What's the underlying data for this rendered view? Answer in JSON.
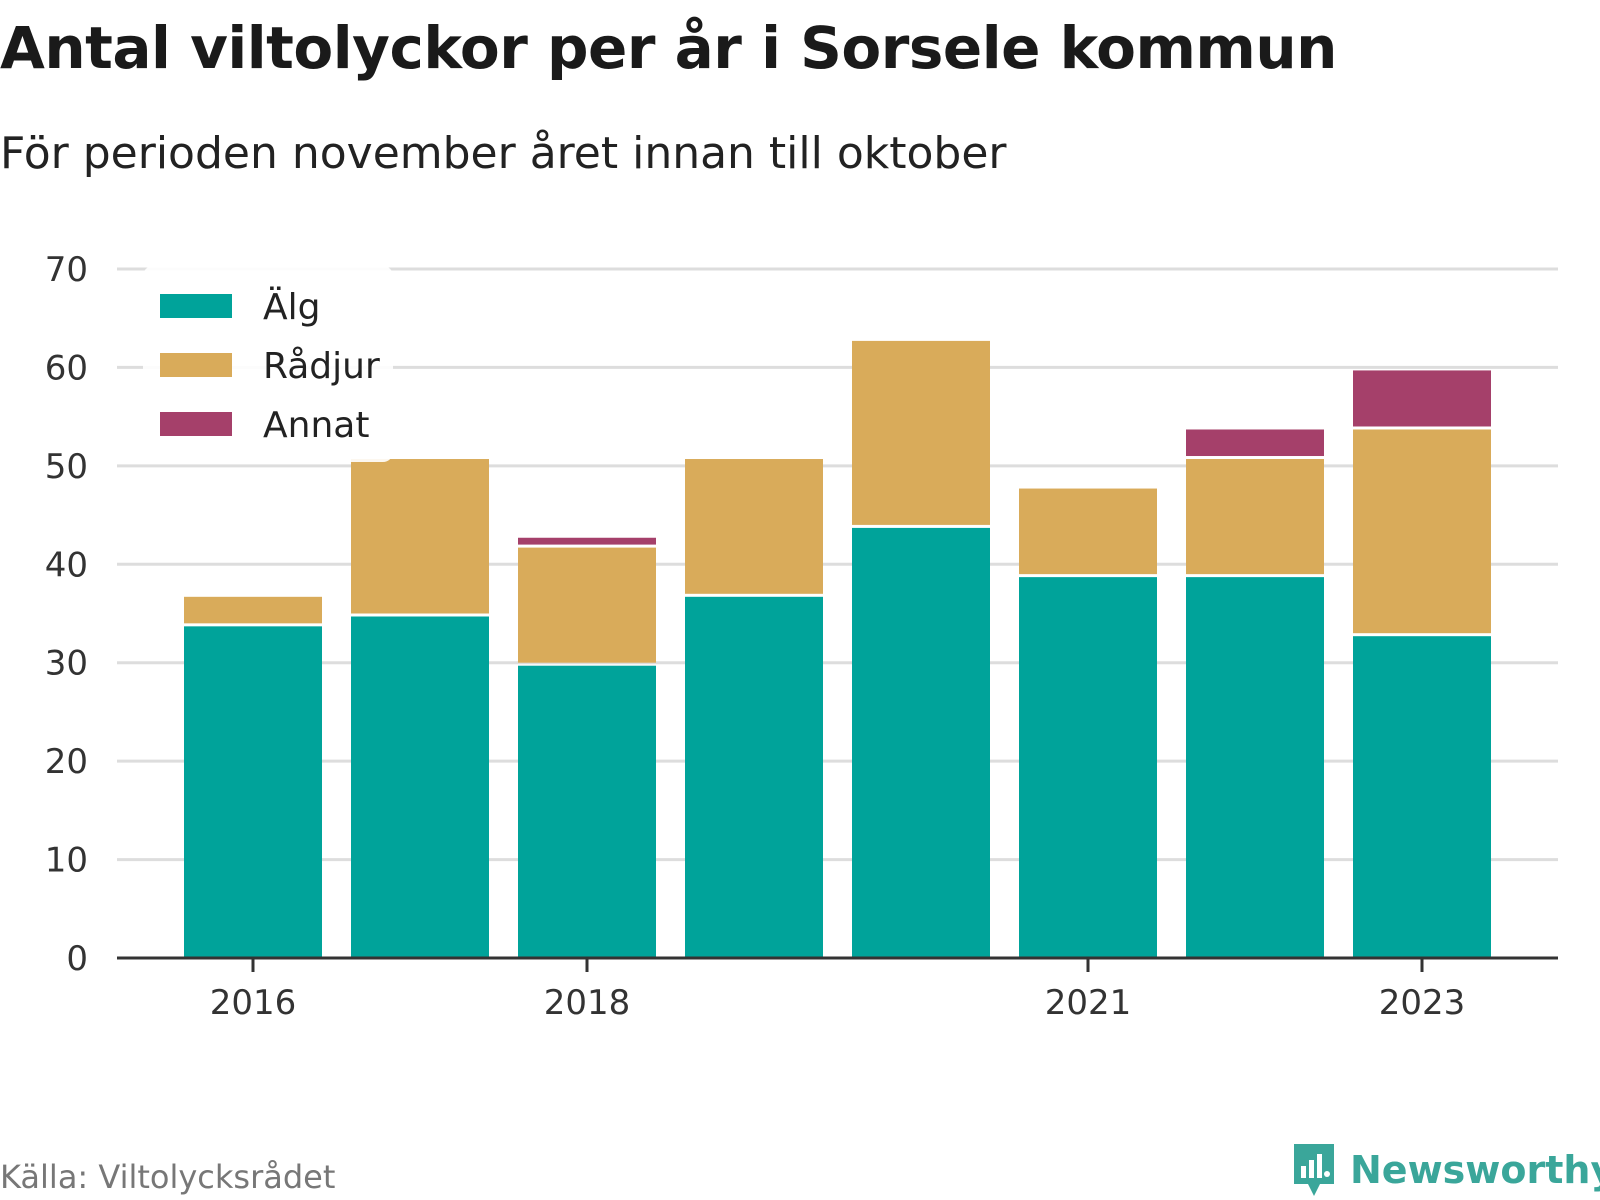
{
  "title": "Antal viltolyckor per år i Sorsele kommun",
  "subtitle": "För perioden november året innan till oktober",
  "source": "Källa: Viltolycksrådet",
  "brand": {
    "name": "Newsworthy",
    "icon": "newsworthy-logo-icon",
    "color": "#3aa69a"
  },
  "chart_data": {
    "type": "bar",
    "stacked": true,
    "categories": [
      "2016",
      "2017",
      "2018",
      "2019",
      "2020",
      "2021",
      "2022",
      "2023"
    ],
    "x_tick_labels": [
      "2016",
      "2018",
      "2021",
      "2023"
    ],
    "series": [
      {
        "name": "Älg",
        "color": "#00a39a",
        "values": [
          34,
          35,
          30,
          37,
          44,
          39,
          39,
          33
        ]
      },
      {
        "name": "Rådjur",
        "color": "#d9ab5a",
        "values": [
          3,
          16,
          12,
          14,
          19,
          9,
          12,
          21
        ]
      },
      {
        "name": "Annat",
        "color": "#a5406a",
        "values": [
          0,
          0,
          1,
          0,
          0,
          0,
          3,
          6
        ]
      }
    ],
    "ylim": [
      0,
      70
    ],
    "yticks": [
      0,
      10,
      20,
      30,
      40,
      50,
      60,
      70
    ],
    "grid": true,
    "legend_position": "top-left",
    "xlabel": "",
    "ylabel": ""
  }
}
